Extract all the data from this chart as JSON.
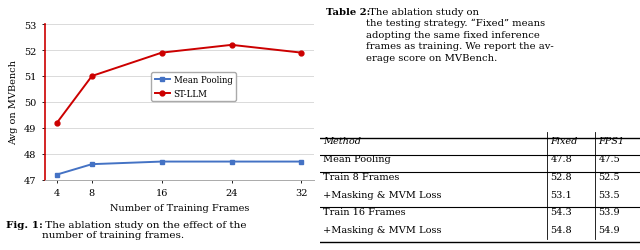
{
  "x": [
    4,
    8,
    16,
    24,
    32
  ],
  "mean_pooling": [
    47.2,
    47.6,
    47.7,
    47.7,
    47.7
  ],
  "st_llm": [
    49.2,
    51.0,
    51.9,
    52.2,
    51.9
  ],
  "xlabel": "Number of Training Frames",
  "ylabel": "Avg on MVBench",
  "ylim": [
    47,
    53
  ],
  "yticks": [
    47,
    48,
    49,
    50,
    51,
    52,
    53
  ],
  "legend_mean": "Mean Pooling",
  "legend_st": "ST-LLM",
  "color_mean": "#4472C4",
  "color_st": "#CC0000",
  "fig_caption_bold": "Fig. 1:",
  "fig_caption_normal": " The ablation study on the effect of the\nnumber of training frames.",
  "table_title_bold": "Table 2:",
  "table_title_normal": " The ablation study on\nthe testing strategy. “Fixed” means\nadopting the same fixed inference\nframes as training. We report the av-\nerage score on MVBench.",
  "table_headers": [
    "Method",
    "Fixed",
    "FPS1"
  ],
  "table_rows": [
    [
      "Mean Pooling",
      "47.8",
      "47.5"
    ],
    [
      "Train 8 Frames",
      "52.8",
      "52.5"
    ],
    [
      "+Masking & MVM Loss",
      "53.1",
      "53.5"
    ],
    [
      "Train 16 Frames",
      "54.3",
      "53.9"
    ],
    [
      "+Masking & MVM Loss",
      "54.8",
      "54.9"
    ]
  ],
  "background": "#ffffff"
}
